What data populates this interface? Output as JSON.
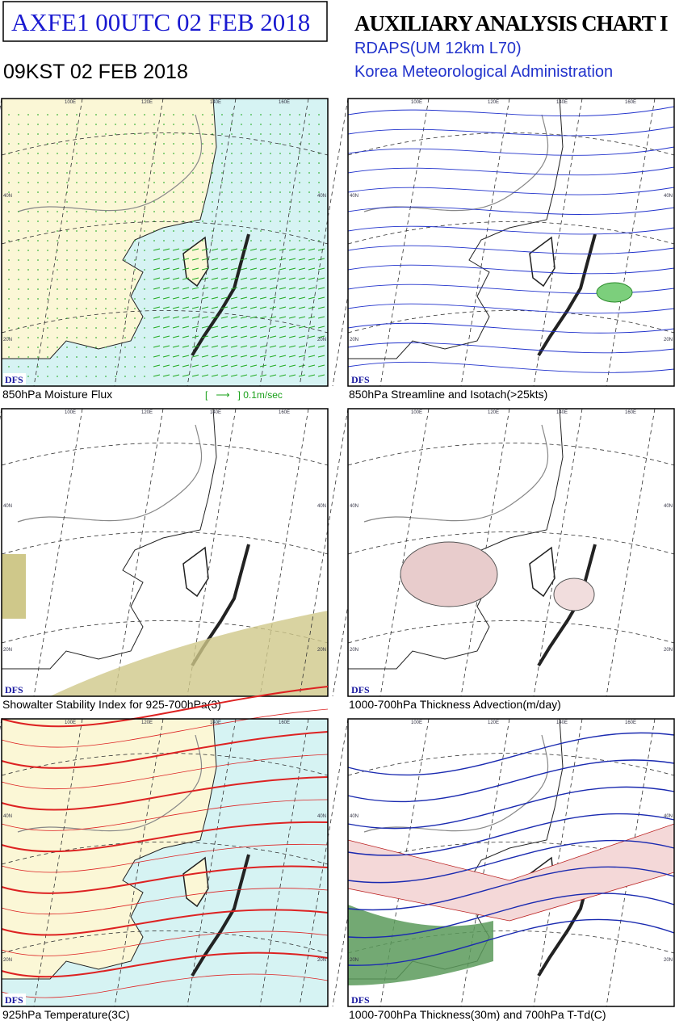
{
  "header": {
    "code": "AXFE1  00UTC 02 FEB 2018",
    "local_time": "09KST 02 FEB 2018",
    "title": "AUXILIARY ANALYSIS CHART I",
    "model": "RDAPS(UM 12km L70)",
    "agency": "Korea Meteorological Administration"
  },
  "panels": [
    {
      "caption": "850hPa Moisture Flux",
      "legend": "[   ⟶   ] 0.1m/sec",
      "badge": "DFS",
      "lon_labels": [
        "100E",
        "120E",
        "140E",
        "160E"
      ],
      "lat_labels": [
        "40N",
        "20N"
      ]
    },
    {
      "caption": "850hPa Streamline and Isotach(>25kts)",
      "badge": "DFS",
      "lon_labels": [
        "100E",
        "120E",
        "140E",
        "160E"
      ],
      "lat_labels": [
        "40N",
        "20N"
      ]
    },
    {
      "caption": "Showalter Stability Index for 925-700hPa(3)",
      "badge": "DFS",
      "lon_labels": [
        "100E",
        "120E",
        "140E",
        "160E"
      ],
      "lat_labels": [
        "40N",
        "20N"
      ]
    },
    {
      "caption": "1000-700hPa Thickness Advection(m/day)",
      "badge": "DFS",
      "lon_labels": [
        "100E",
        "120E",
        "140E",
        "160E"
      ],
      "lat_labels": [
        "40N",
        "20N"
      ]
    },
    {
      "caption": "925hPa Temperature(3C)",
      "badge": "DFS",
      "lon_labels": [
        "100E",
        "120E",
        "140E",
        "160E"
      ],
      "lat_labels": [
        "40N",
        "20N"
      ]
    },
    {
      "caption": "1000-700hPa Thickness(30m) and 700hPa T-Td(C)",
      "badge": "DFS",
      "lon_labels": [
        "100E",
        "120E",
        "140E",
        "160E"
      ],
      "lat_labels": [
        "40N",
        "20N"
      ]
    }
  ]
}
